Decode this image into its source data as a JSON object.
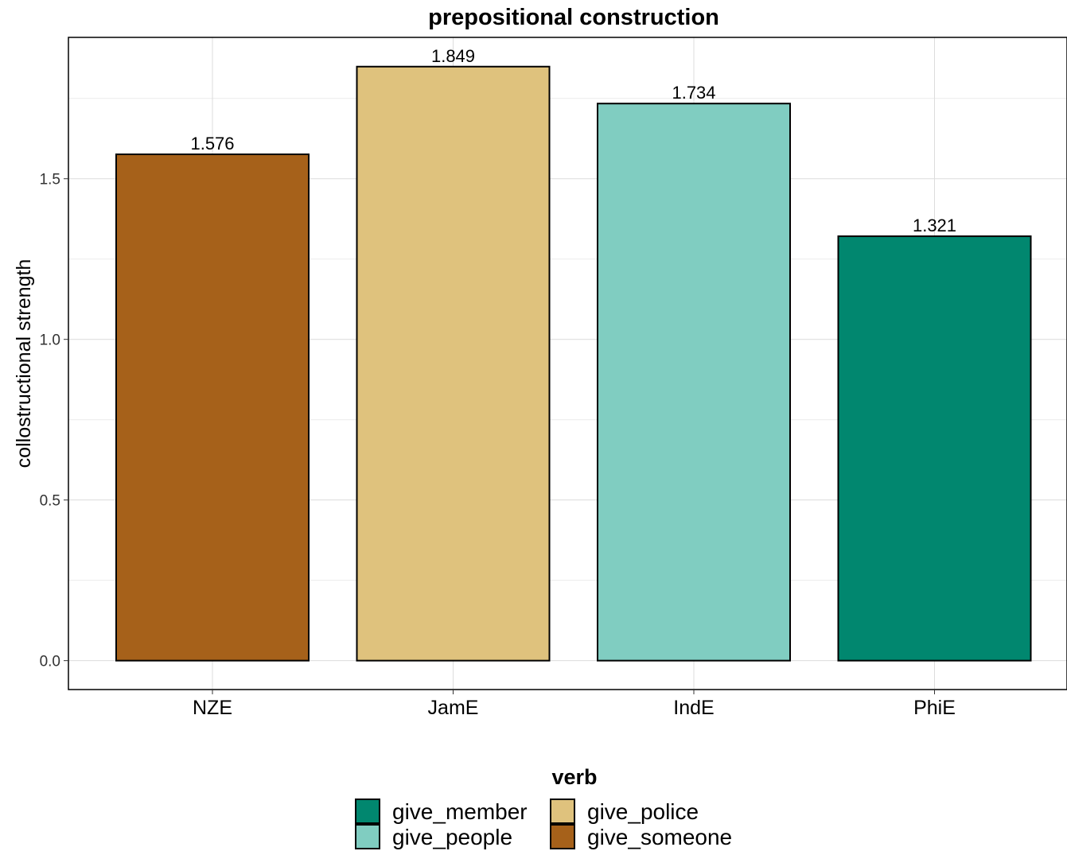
{
  "chart_data": {
    "type": "bar",
    "title": "prepositional construction",
    "xlabel": "",
    "ylabel": "collostructional strength",
    "categories": [
      "NZE",
      "JamE",
      "IndE",
      "PhiE"
    ],
    "values": [
      1.576,
      1.849,
      1.734,
      1.321
    ],
    "value_labels": [
      "1.576",
      "1.849",
      "1.734",
      "1.321"
    ],
    "bar_verbs": [
      "give_someone",
      "give_police",
      "give_people",
      "give_member"
    ],
    "ylim": [
      -0.09,
      1.94
    ],
    "yticks": [
      0.0,
      0.5,
      1.0,
      1.5
    ],
    "ytick_labels": [
      "0.0",
      "0.5",
      "1.0",
      "1.5"
    ],
    "grid": true,
    "legend": {
      "title": "verb",
      "position": "bottom",
      "entries": [
        {
          "label": "give_member",
          "color": "#01876F"
        },
        {
          "label": "give_people",
          "color": "#80CDC1"
        },
        {
          "label": "give_police",
          "color": "#DFC27D"
        },
        {
          "label": "give_someone",
          "color": "#A6611A"
        }
      ]
    }
  }
}
